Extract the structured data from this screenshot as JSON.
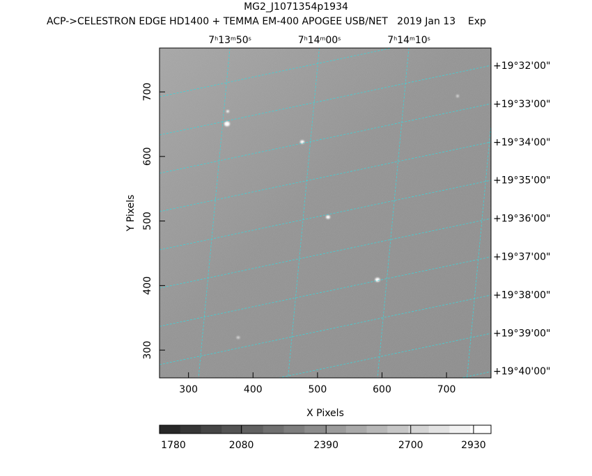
{
  "title": "MG2_J1071354p1934",
  "subtitle": "ACP->CELESTRON EDGE HD1400 + TEMMA EM-400 APOGEE USB/NET   2019 Jan 13    Exp",
  "chart_data": {
    "type": "image",
    "x_label": "X Pixels",
    "y_label": "Y Pixels",
    "xlim": [
      255,
      769
    ],
    "xticks": [
      300,
      400,
      500,
      600,
      700
    ],
    "ylim": [
      257,
      768
    ],
    "yticks": [
      300,
      400,
      500,
      600,
      700
    ],
    "ra_labels": [
      "7h13m50s",
      "7h14m00s",
      "7h14m10s"
    ],
    "dec_labels": [
      "+19°32'00\"",
      "+19°33'00\"",
      "+19°34'00\"",
      "+19°35'00\"",
      "+19°36'00\"",
      "+19°37'00\"",
      "+19°38'00\"",
      "+19°39'00\"",
      "+19°40'00\""
    ],
    "colorbar_lim": [
      1780,
      2994
    ],
    "colorbar_ticks": [
      1780,
      2080,
      2390,
      2700,
      2930
    ]
  }
}
